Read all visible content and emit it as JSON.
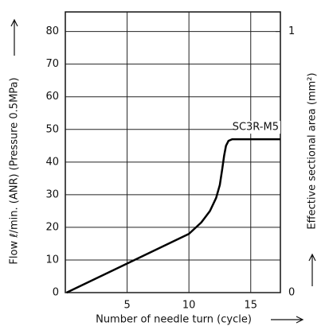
{
  "chart_data": {
    "type": "line",
    "x_label": "Number of needle turn (cycle)",
    "y_label": "Flow ℓ/min. (ANR) (Pressure 0.5MPa)",
    "y2_label": "Effective sectional area (mm²)",
    "xlim": [
      0,
      17.4
    ],
    "xticks": [
      5,
      10,
      15
    ],
    "ylim": [
      0,
      86
    ],
    "yticks": [
      0,
      10,
      20,
      30,
      40,
      50,
      60,
      70,
      80
    ],
    "y2lim": [
      0,
      1.075
    ],
    "y2ticks": [
      0,
      1
    ],
    "grid": true,
    "series": [
      {
        "name": "SC3R-M5",
        "color": "#000000",
        "x": [
          0.1,
          10,
          11,
          11.7,
          12.2,
          12.5,
          12.7,
          12.85,
          13,
          13.2,
          13.5,
          17.4
        ],
        "values": [
          0,
          18,
          21.5,
          25,
          29,
          33,
          38,
          42,
          45,
          46.5,
          47,
          47
        ]
      }
    ]
  }
}
